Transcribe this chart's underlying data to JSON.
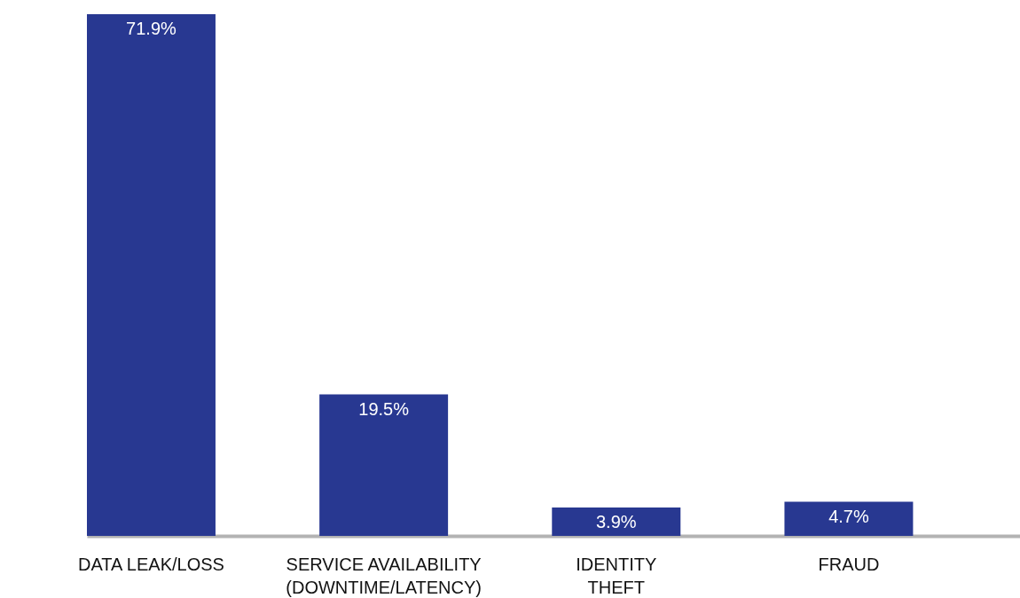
{
  "chart_data": {
    "type": "bar",
    "categories": [
      "DATA LEAK/LOSS",
      "SERVICE AVAILABILITY\n(DOWNTIME/LATENCY)",
      "IDENTITY\nTHEFT",
      "FRAUD"
    ],
    "values": [
      71.9,
      19.5,
      3.9,
      4.7
    ],
    "value_labels": [
      "71.9%",
      "19.5%",
      "3.9%",
      "4.7%"
    ],
    "color": "#283891"
  }
}
